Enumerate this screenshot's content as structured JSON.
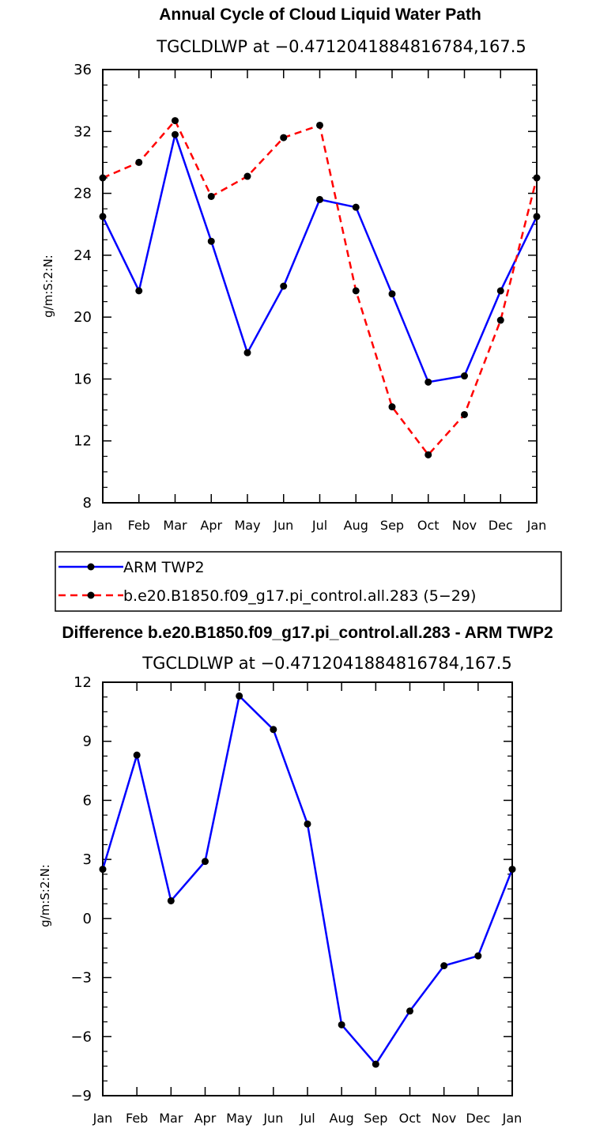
{
  "chart_data": [
    {
      "type": "line",
      "title": "Annual Cycle of Cloud Liquid Water Path",
      "subtitle": "TGCLDLWP at −0.4712041884816784,167.5",
      "ylabel": "g/m:S:2:N:",
      "ylim": [
        8,
        36
      ],
      "yticks": [
        "8",
        "12",
        "16",
        "20",
        "24",
        "28",
        "32",
        "36"
      ],
      "categories": [
        "Jan",
        "Feb",
        "Mar",
        "Apr",
        "May",
        "Jun",
        "Jul",
        "Aug",
        "Sep",
        "Oct",
        "Nov",
        "Dec",
        "Jan"
      ],
      "series": [
        {
          "name": "ARM TWP2",
          "color": "#0000ff",
          "dash": "solid",
          "values": [
            26.5,
            21.7,
            31.8,
            24.9,
            17.7,
            22.0,
            27.6,
            27.1,
            21.5,
            15.8,
            16.2,
            21.7,
            26.5
          ]
        },
        {
          "name": "b.e20.B1850.f09_g17.pi_control.all.283 (5−29)",
          "color": "#ff0000",
          "dash": "dashed",
          "values": [
            29.0,
            30.0,
            32.7,
            27.8,
            29.1,
            31.6,
            32.4,
            21.7,
            14.2,
            11.1,
            13.7,
            19.8,
            29.0
          ]
        }
      ],
      "legend": "below"
    },
    {
      "type": "line",
      "title": "Difference b.e20.B1850.f09_g17.pi_control.all.283 - ARM TWP2",
      "subtitle": "TGCLDLWP at −0.4712041884816784,167.5",
      "ylabel": "g/m:S:2:N:",
      "ylim": [
        -9,
        12
      ],
      "yticks": [
        "−9",
        "−6",
        "−3",
        "0",
        "3",
        "6",
        "9",
        "12"
      ],
      "categories": [
        "Jan",
        "Feb",
        "Mar",
        "Apr",
        "May",
        "Jun",
        "Jul",
        "Aug",
        "Sep",
        "Oct",
        "Nov",
        "Dec",
        "Jan"
      ],
      "series": [
        {
          "name": "",
          "color": "#0000ff",
          "dash": "solid",
          "values": [
            2.5,
            8.3,
            0.9,
            2.9,
            11.3,
            9.6,
            4.8,
            -5.4,
            -7.4,
            -4.7,
            -2.4,
            -1.9,
            2.5
          ]
        }
      ]
    }
  ]
}
